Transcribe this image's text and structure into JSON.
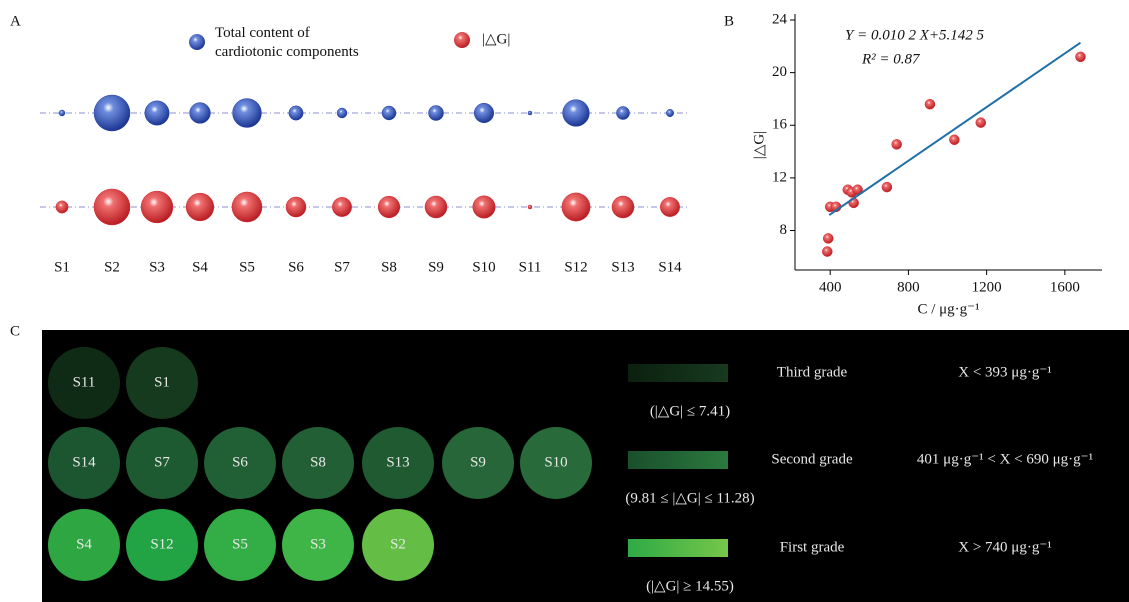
{
  "panel_labels": [
    "A",
    "B",
    "C"
  ],
  "chart_data": [
    {
      "type": "bubble",
      "categories": [
        "S1",
        "S2",
        "S3",
        "S4",
        "S5",
        "S6",
        "S7",
        "S8",
        "S9",
        "S10",
        "S11",
        "S12",
        "S13",
        "S14"
      ],
      "series": [
        {
          "name": "Total content of cardiotonic components",
          "color": "#1f3fa8",
          "values": [
            390,
            1680,
            910,
            740,
            1170,
            520,
            430,
            510,
            540,
            690,
            385,
            1035,
            490,
            400
          ]
        },
        {
          "name": "|△G|",
          "color": "#d8262b",
          "values": [
            7.4,
            21.2,
            17.6,
            14.55,
            16.2,
            10.1,
            9.8,
            10.9,
            11.1,
            11.3,
            6.4,
            14.9,
            11.1,
            9.8
          ]
        }
      ]
    },
    {
      "type": "scatter",
      "x": [
        385,
        390,
        400,
        430,
        490,
        510,
        520,
        540,
        690,
        740,
        910,
        1035,
        1170,
        1680
      ],
      "y": [
        6.4,
        7.4,
        9.8,
        9.8,
        11.1,
        10.9,
        10.1,
        11.1,
        11.3,
        14.55,
        17.6,
        14.9,
        16.2,
        21.2
      ],
      "color": "#d8262b",
      "xlim": [
        220,
        1790
      ],
      "ylim": [
        5,
        24
      ],
      "xticks": [
        400,
        800,
        1200,
        1600
      ],
      "yticks": [
        8,
        12,
        16,
        20,
        24
      ],
      "xlabel": "C / μg·g⁻¹",
      "ylabel": "|△G|",
      "fit": {
        "slope": 0.0102,
        "intercept": 5.1425,
        "x_range": [
          395,
          1680
        ],
        "color": "#1f6fa8"
      },
      "annotations": [
        "Y = 0.010 2 X+5.142 5",
        "R² = 0.87"
      ]
    }
  ],
  "grading": {
    "rows": [
      {
        "samples": [
          "S11",
          "S1"
        ],
        "colors": [
          "#0f2a15",
          "#163a1e"
        ]
      },
      {
        "samples": [
          "S14",
          "S7",
          "S6",
          "S8",
          "S13",
          "S9",
          "S10"
        ],
        "colors": [
          "#1c5630",
          "#1e5a31",
          "#215f34",
          "#225f35",
          "#1f5a31",
          "#276638",
          "#286a3a"
        ]
      },
      {
        "samples": [
          "S4",
          "S12",
          "S5",
          "S3",
          "S2"
        ],
        "colors": [
          "#2ea743",
          "#22a344",
          "#33ad45",
          "#3fb547",
          "#64bd45"
        ]
      }
    ],
    "grades": [
      {
        "name": "Third grade",
        "range": "(|△G| ≤ 7.41)",
        "criterion": "X < 393 μg·g⁻¹",
        "colors": [
          "#0b200f",
          "#173a1f"
        ]
      },
      {
        "name": "Second grade",
        "range": "(9.81 ≤ |△G| ≤ 11.28)",
        "criterion": "401 μg·g⁻¹ < X < 690 μg·g⁻¹",
        "colors": [
          "#1a4f2b",
          "#2b7a3e"
        ]
      },
      {
        "name": "First grade",
        "range": "(|△G| ≥ 14.55)",
        "criterion": "X > 740 μg·g⁻¹",
        "colors": [
          "#2eaa45",
          "#76c64a"
        ]
      }
    ]
  }
}
